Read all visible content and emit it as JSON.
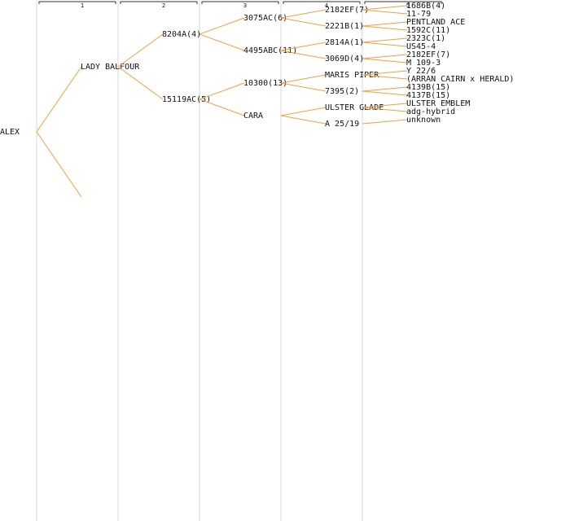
{
  "columns": [
    "1",
    "2",
    "3",
    "4",
    "5"
  ],
  "tree": {
    "label": "ALEX",
    "children": [
      {
        "label": "LADY BALFOUR",
        "children": [
          {
            "label": "8204A(4)",
            "children": [
              {
                "label": "3075AC(6)",
                "children": [
                  {
                    "label": "2182EF(7)",
                    "children": [
                      {
                        "label": "1686B(4)"
                      },
                      {
                        "label": "11-79"
                      }
                    ]
                  },
                  {
                    "label": "2221B(1)",
                    "children": [
                      {
                        "label": "PENTLAND ACE"
                      },
                      {
                        "label": "1592C(11)"
                      }
                    ]
                  }
                ]
              },
              {
                "label": "4495ABC(11)",
                "children": [
                  {
                    "label": "2814A(1)",
                    "children": [
                      {
                        "label": "2323C(1)"
                      },
                      {
                        "label": "US45-4"
                      }
                    ]
                  },
                  {
                    "label": "3069D(4)",
                    "children": [
                      {
                        "label": "2182EF(7)"
                      },
                      {
                        "label": "M 109-3"
                      }
                    ]
                  }
                ]
              }
            ]
          },
          {
            "label": "15119AC(5)",
            "children": [
              {
                "label": "10300(13)",
                "children": [
                  {
                    "label": "MARIS PIPER",
                    "children": [
                      {
                        "label": "Y 22/6"
                      },
                      {
                        "label": "(ARRAN CAIRN x HERALD)"
                      }
                    ]
                  },
                  {
                    "label": "7395(2)",
                    "children": [
                      {
                        "label": "4139B(15)"
                      },
                      {
                        "label": "4137B(15)"
                      }
                    ]
                  }
                ]
              },
              {
                "label": "CARA",
                "children": [
                  {
                    "label": "ULSTER GLADE",
                    "children": [
                      {
                        "label": "ULSTER EMBLEM"
                      },
                      {
                        "label": "adg-hybrid"
                      }
                    ]
                  },
                  {
                    "label": "A 25/19",
                    "children": [
                      {
                        "label": "unknown"
                      },
                      null
                    ]
                  }
                ]
              }
            ]
          }
        ]
      },
      {}
    ]
  }
}
